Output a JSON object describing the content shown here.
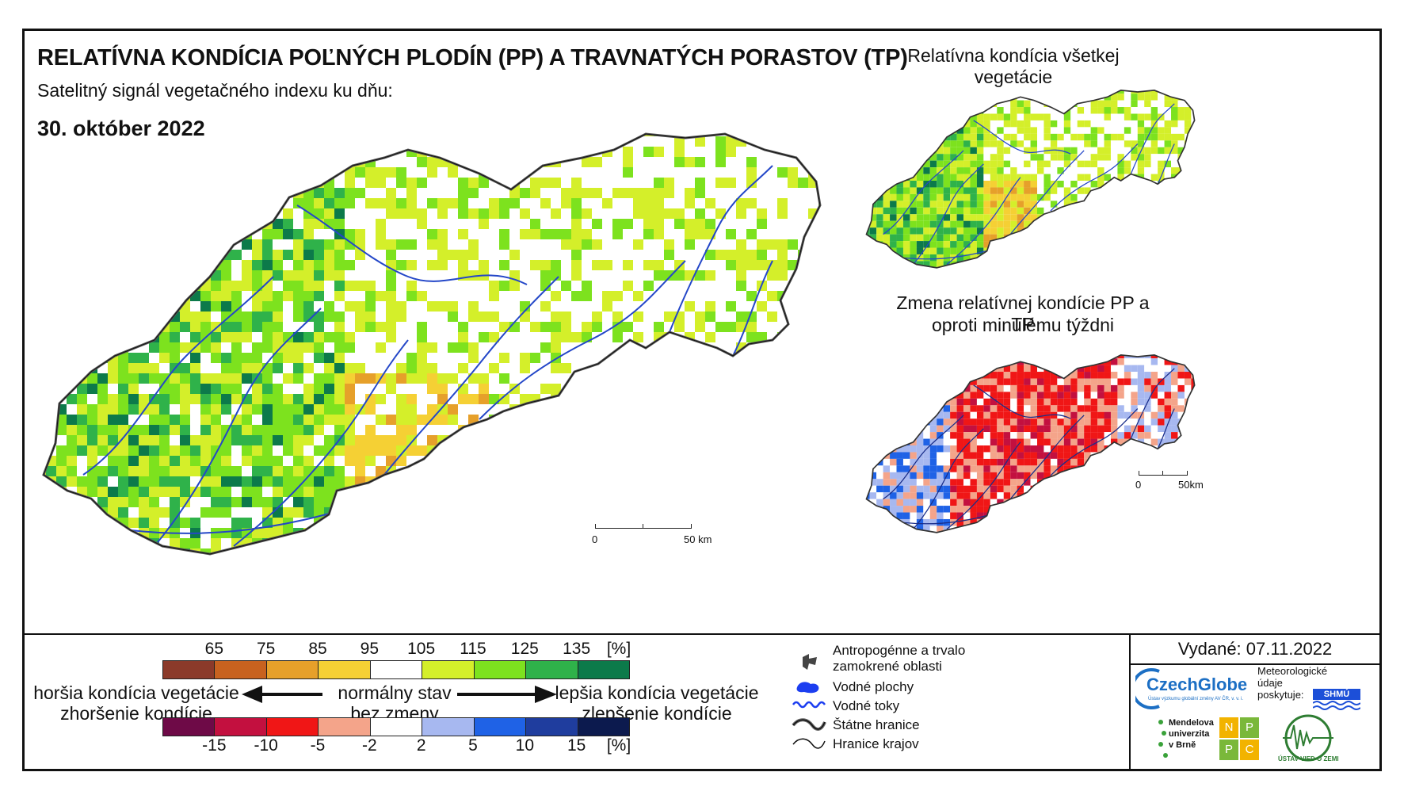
{
  "title": "RELATÍVNA KONDÍCIA POĽNÝCH PLODÍN (PP) A TRAVNATÝCH PORASTOV (TP)",
  "subtitle": "Satelitný signál vegetačného indexu ku dňu:",
  "date": "30. október 2022",
  "inset_top_title": "Relatívna kondícia všetkej vegetácie",
  "inset_bottom_title_1": "Zmena relatívnej kondície PP a TP",
  "inset_bottom_title_2": "oproti minulému týždni",
  "scale_main": {
    "zero": "0",
    "end": "50 km"
  },
  "scale_inset": {
    "zero": "0",
    "end": "50km"
  },
  "legend_condition": {
    "ticks": [
      "65",
      "75",
      "85",
      "95",
      "105",
      "115",
      "125",
      "135",
      "[%]"
    ],
    "colors": [
      "#8b3a2a",
      "#c8621f",
      "#e6a02a",
      "#f5d034",
      "#ffffff",
      "#d4ef2a",
      "#7de21e",
      "#2fb24a",
      "#0c7a4a"
    ]
  },
  "legend_change": {
    "ticks": [
      "-15",
      "-10",
      "-5",
      "-2",
      "2",
      "5",
      "10",
      "15",
      "[%]"
    ],
    "colors": [
      "#6e0a47",
      "#c3103f",
      "#f01616",
      "#f4a48a",
      "#ffffff",
      "#a7b8f0",
      "#1f62e6",
      "#1f3d9e",
      "#0c1a4e"
    ]
  },
  "legend_text": {
    "worse_1": "horšia kondícia vegetácie",
    "worse_2": "zhoršenie kondície",
    "normal_1": "normálny stav",
    "normal_2": "bez zmeny",
    "better_1": "lepšia kondícia vegetácie",
    "better_2": "zlepšenie kondície"
  },
  "key": {
    "anthropogenic_1": "Antropogénne a trvalo",
    "anthropogenic_2": "zamokrené oblasti",
    "water_bodies": "Vodné plochy",
    "rivers": "Vodné toky",
    "state_border": "Štátne hranice",
    "region_border": "Hranice krajov"
  },
  "issued": "Vydané: 07.11.2022",
  "logos": {
    "czechglobe": "CzechGlobe",
    "czechglobe_sub": "Ústav výzkumu globální změny AV ČR, v. v. i.",
    "meteo_1": "Meteorologické",
    "meteo_2": "údaje",
    "meteo_3": "poskytuje:",
    "shmu": "SHMÚ",
    "mendel_1": "Mendelova",
    "mendel_2": "univerzita",
    "mendel_3": "v Brně",
    "nppc": [
      "N",
      "P",
      "P",
      "C"
    ],
    "uvz": "ÚSTAV VIED O ZEMI"
  }
}
